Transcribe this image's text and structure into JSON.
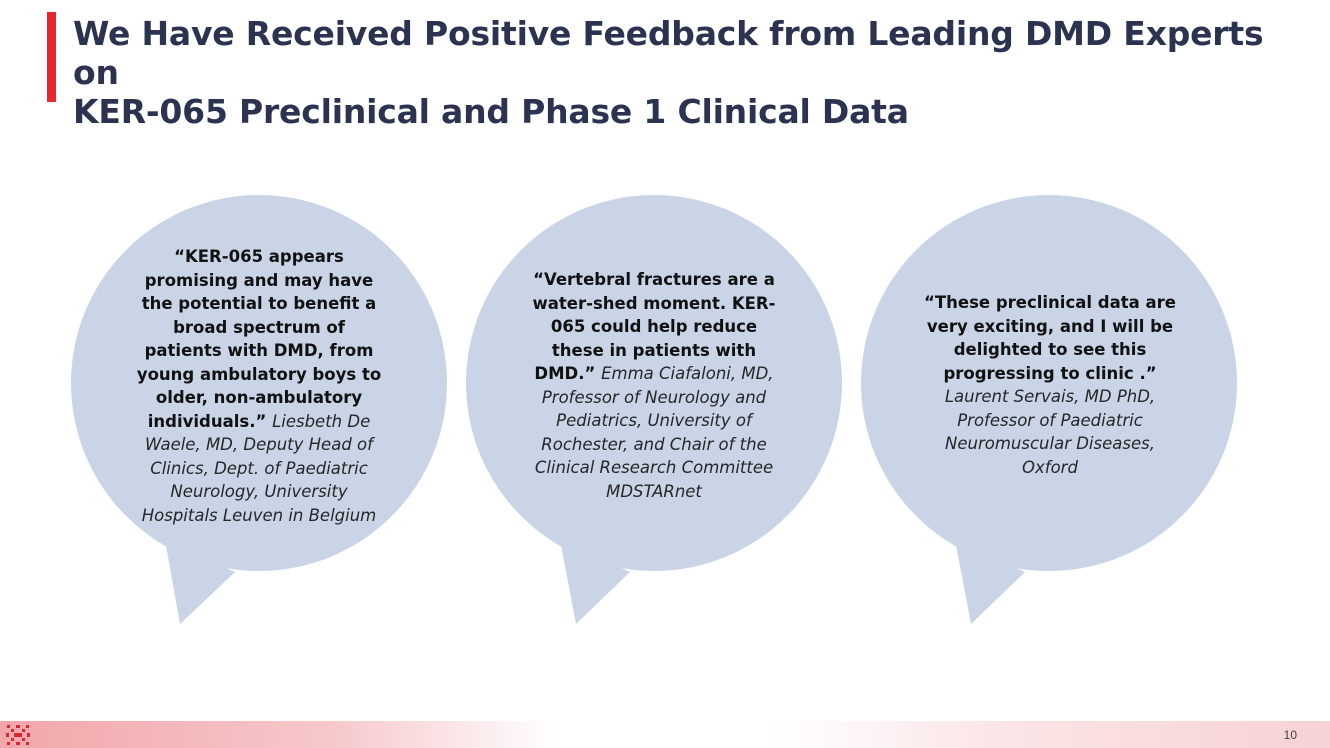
{
  "slide": {
    "title_line1": "We Have Received Positive Feedback from Leading DMD Experts on",
    "title_line2": "KER-065 Preclinical and Phase 1 Clinical Data",
    "page_number": "10"
  },
  "colors": {
    "accent": "#e8262d",
    "title": "#2b3350",
    "bubble": "#c9d4e7"
  },
  "quotes": [
    {
      "quote": "“KER-065 appears promising and may have the potential to benefit a broad spectrum of patients with DMD, from young ambulatory boys to older, non-ambulatory individuals.”",
      "attribution": "Liesbeth De Waele, MD, Deputy Head of Clinics, Dept. of Paediatric Neurology, University Hospitals Leuven in Belgium"
    },
    {
      "quote": "“Vertebral fractures are a water-shed moment. KER-065 could help reduce these in patients with DMD.”",
      "attribution": "Emma Ciafaloni, MD, Professor of Neurology and Pediatrics, University of Rochester, and Chair of the Clinical Research Committee MDSTARnet"
    },
    {
      "quote": "“These preclinical data are very exciting, and I will be delighted to see this progressing to clinic .”",
      "attribution": "Laurent Servais, MD PhD, Professor of Paediatric Neuromuscular Diseases, Oxford"
    }
  ]
}
